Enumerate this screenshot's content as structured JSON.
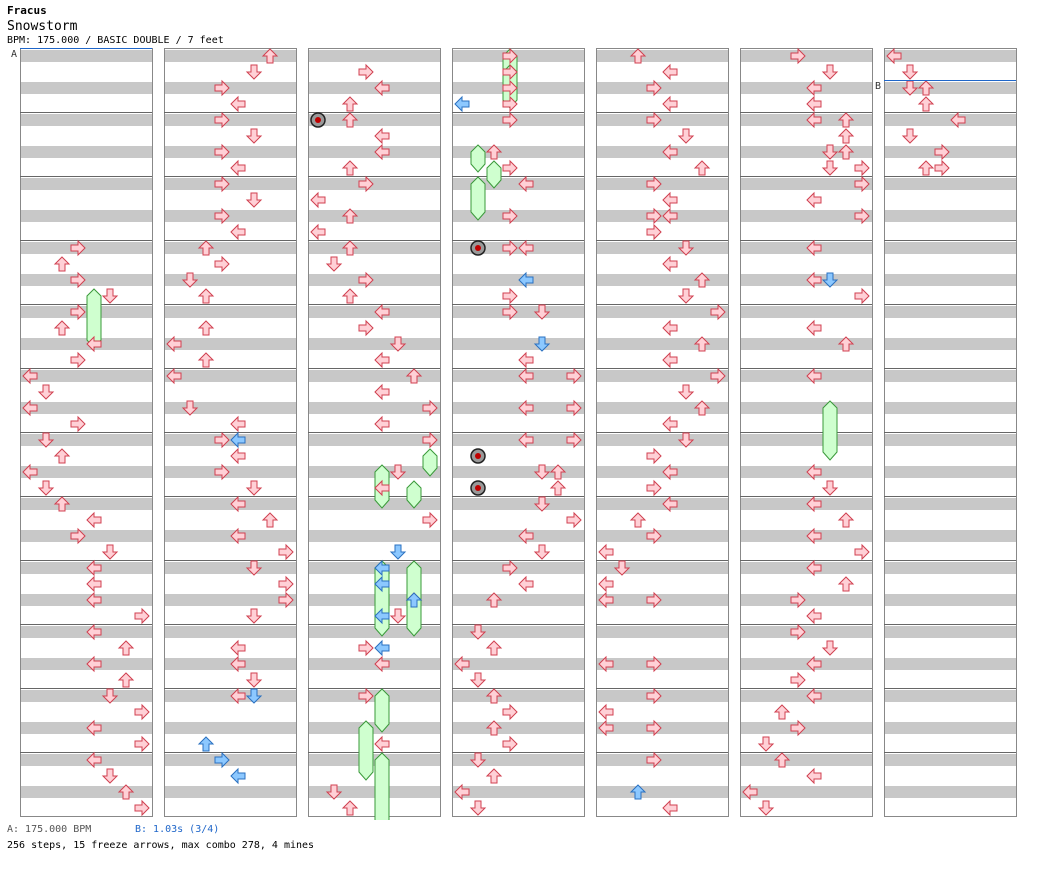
{
  "song": {
    "artist": "Fracus",
    "title": "Snowstorm",
    "meta": "BPM: 175.000 / BASIC DOUBLE / 7 feet"
  },
  "footer": {
    "bpm_a": "A: 175.000 BPM",
    "bpm_b": "B: 1.03s (3/4)",
    "stats": "256 steps, 15 freeze arrows, max combo 278, 4 mines"
  },
  "markers": [
    {
      "label": "A",
      "column": 0,
      "beat": 0,
      "color": "#1f66c9"
    },
    {
      "label": "B",
      "column": 6,
      "beat": 2,
      "color": "#1f66c9"
    }
  ],
  "colors": {
    "note": "#ffd0d6",
    "note_stroke": "#d04050",
    "blue_note": "#8cc8ff",
    "blue_stroke": "#2a70c0",
    "freeze": "#cfffcf",
    "freeze_stroke": "#3a9a3a",
    "stripe": "#c8c8c8",
    "mine": "#444444"
  },
  "chart_data": {
    "type": "step-chart",
    "lanes": 8,
    "columns": 7,
    "measures_per_column": 12,
    "beats_per_measure": 4,
    "notes": [
      [
        0,
        12,
        3
      ],
      [
        0,
        13,
        2
      ],
      [
        0,
        14,
        3
      ],
      [
        0,
        15,
        5
      ],
      [
        0,
        16,
        3
      ],
      [
        0,
        17,
        2
      ],
      [
        0,
        18,
        4
      ],
      [
        0,
        19,
        3
      ],
      [
        0,
        20,
        0
      ],
      [
        0,
        21,
        1
      ],
      [
        0,
        22,
        0
      ],
      [
        0,
        23,
        3
      ],
      [
        0,
        24,
        1
      ],
      [
        0,
        25,
        2
      ],
      [
        0,
        26,
        0
      ],
      [
        0,
        27,
        1
      ],
      [
        0,
        28,
        2
      ],
      [
        0,
        29,
        4
      ],
      [
        0,
        30,
        3
      ],
      [
        0,
        31,
        5
      ],
      [
        0,
        32,
        4
      ],
      [
        0,
        33,
        4
      ],
      [
        0,
        34,
        4
      ],
      [
        0,
        35,
        7
      ],
      [
        0,
        36,
        4
      ],
      [
        0,
        37,
        6
      ],
      [
        0,
        38,
        4
      ],
      [
        0,
        39,
        6
      ],
      [
        0,
        40,
        5
      ],
      [
        0,
        41,
        7
      ],
      [
        0,
        42,
        4
      ],
      [
        0,
        43,
        7
      ],
      [
        0,
        44,
        4
      ],
      [
        0,
        45,
        5
      ],
      [
        0,
        46,
        6
      ],
      [
        0,
        47,
        7
      ],
      [
        1,
        0,
        6
      ],
      [
        1,
        1,
        5
      ],
      [
        1,
        2,
        3
      ],
      [
        1,
        3,
        4
      ],
      [
        1,
        4,
        3
      ],
      [
        1,
        5,
        5
      ],
      [
        1,
        6,
        3
      ],
      [
        1,
        7,
        4
      ],
      [
        1,
        8,
        3
      ],
      [
        1,
        9,
        5
      ],
      [
        1,
        10,
        3
      ],
      [
        1,
        11,
        4
      ],
      [
        1,
        12,
        2
      ],
      [
        1,
        13,
        3
      ],
      [
        1,
        14,
        1
      ],
      [
        1,
        15,
        2
      ],
      [
        1,
        17,
        2
      ],
      [
        1,
        18,
        0
      ],
      [
        1,
        19,
        2
      ],
      [
        1,
        20,
        0
      ],
      [
        1,
        22,
        1
      ],
      [
        1,
        23,
        4
      ],
      [
        1,
        24,
        3
      ],
      [
        1,
        25,
        4
      ],
      [
        1,
        26,
        3
      ],
      [
        1,
        27,
        5
      ],
      [
        1,
        28,
        4
      ],
      [
        1,
        29,
        6
      ],
      [
        1,
        30,
        4
      ],
      [
        1,
        31,
        7
      ],
      [
        1,
        32,
        5
      ],
      [
        1,
        33,
        7
      ],
      [
        1,
        34,
        7
      ],
      [
        1,
        35,
        5
      ],
      [
        1,
        37,
        4
      ],
      [
        1,
        38,
        4
      ],
      [
        1,
        39,
        5
      ],
      [
        1,
        40,
        4
      ],
      [
        2,
        1,
        3
      ],
      [
        2,
        2,
        4
      ],
      [
        2,
        3,
        2
      ],
      [
        2,
        4,
        2
      ],
      [
        2,
        5,
        4
      ],
      [
        2,
        6,
        4
      ],
      [
        2,
        7,
        2
      ],
      [
        2,
        8,
        3
      ],
      [
        2,
        9,
        0
      ],
      [
        2,
        10,
        2
      ],
      [
        2,
        11,
        0
      ],
      [
        2,
        12,
        2
      ],
      [
        2,
        13,
        1
      ],
      [
        2,
        14,
        3
      ],
      [
        2,
        15,
        2
      ],
      [
        2,
        16,
        4
      ],
      [
        2,
        17,
        3
      ],
      [
        2,
        18,
        5
      ],
      [
        2,
        19,
        4
      ],
      [
        2,
        20,
        6
      ],
      [
        2,
        21,
        4
      ],
      [
        2,
        22,
        7
      ],
      [
        2,
        23,
        4
      ],
      [
        2,
        24,
        7
      ],
      [
        2,
        26,
        5
      ],
      [
        2,
        27,
        4
      ],
      [
        2,
        29,
        7
      ],
      [
        2,
        34,
        6
      ],
      [
        2,
        35,
        5
      ],
      [
        2,
        37,
        3
      ],
      [
        2,
        38,
        4
      ],
      [
        2,
        40,
        3
      ],
      [
        2,
        43,
        4
      ],
      [
        2,
        46,
        1
      ],
      [
        2,
        47,
        2
      ],
      [
        3,
        0,
        3
      ],
      [
        3,
        1,
        3
      ],
      [
        3,
        2,
        3
      ],
      [
        3,
        3,
        3
      ],
      [
        3,
        4,
        3
      ],
      [
        3,
        6,
        2
      ],
      [
        3,
        7,
        3
      ],
      [
        3,
        8,
        4
      ],
      [
        3,
        10,
        3
      ],
      [
        3,
        12,
        3
      ],
      [
        3,
        12,
        4
      ],
      [
        3,
        15,
        3
      ],
      [
        3,
        16,
        3
      ],
      [
        3,
        16,
        5
      ],
      [
        3,
        19,
        4
      ],
      [
        3,
        20,
        4
      ],
      [
        3,
        20,
        7
      ],
      [
        3,
        22,
        4
      ],
      [
        3,
        22,
        7
      ],
      [
        3,
        24,
        4
      ],
      [
        3,
        24,
        7
      ],
      [
        3,
        26,
        5
      ],
      [
        3,
        26,
        6
      ],
      [
        3,
        27,
        6
      ],
      [
        3,
        28,
        5
      ],
      [
        3,
        29,
        7
      ],
      [
        3,
        30,
        4
      ],
      [
        3,
        31,
        5
      ],
      [
        3,
        32,
        3
      ],
      [
        3,
        33,
        4
      ],
      [
        3,
        34,
        2
      ],
      [
        3,
        36,
        1
      ],
      [
        3,
        37,
        2
      ],
      [
        3,
        38,
        0
      ],
      [
        3,
        39,
        1
      ],
      [
        3,
        40,
        2
      ],
      [
        3,
        41,
        3
      ],
      [
        3,
        42,
        2
      ],
      [
        3,
        43,
        3
      ],
      [
        3,
        44,
        1
      ],
      [
        3,
        45,
        2
      ],
      [
        3,
        46,
        0
      ],
      [
        3,
        47,
        1
      ],
      [
        4,
        0,
        2
      ],
      [
        4,
        1,
        4
      ],
      [
        4,
        2,
        3
      ],
      [
        4,
        3,
        4
      ],
      [
        4,
        4,
        3
      ],
      [
        4,
        5,
        5
      ],
      [
        4,
        6,
        4
      ],
      [
        4,
        7,
        6
      ],
      [
        4,
        8,
        3
      ],
      [
        4,
        9,
        4
      ],
      [
        4,
        10,
        3
      ],
      [
        4,
        10,
        4
      ],
      [
        4,
        11,
        3
      ],
      [
        4,
        12,
        5
      ],
      [
        4,
        13,
        4
      ],
      [
        4,
        14,
        6
      ],
      [
        4,
        15,
        5
      ],
      [
        4,
        16,
        7
      ],
      [
        4,
        17,
        4
      ],
      [
        4,
        18,
        6
      ],
      [
        4,
        19,
        4
      ],
      [
        4,
        20,
        7
      ],
      [
        4,
        21,
        5
      ],
      [
        4,
        22,
        6
      ],
      [
        4,
        23,
        4
      ],
      [
        4,
        24,
        5
      ],
      [
        4,
        25,
        3
      ],
      [
        4,
        26,
        4
      ],
      [
        4,
        27,
        3
      ],
      [
        4,
        28,
        4
      ],
      [
        4,
        29,
        2
      ],
      [
        4,
        30,
        3
      ],
      [
        4,
        31,
        0
      ],
      [
        4,
        32,
        1
      ],
      [
        4,
        33,
        0
      ],
      [
        4,
        34,
        0
      ],
      [
        4,
        34,
        3
      ],
      [
        4,
        38,
        0
      ],
      [
        4,
        38,
        3
      ],
      [
        4,
        40,
        3
      ],
      [
        4,
        41,
        0
      ],
      [
        4,
        42,
        0
      ],
      [
        4,
        42,
        3
      ],
      [
        4,
        44,
        3
      ],
      [
        4,
        47,
        4
      ],
      [
        5,
        0,
        3
      ],
      [
        5,
        1,
        5
      ],
      [
        5,
        2,
        4
      ],
      [
        5,
        3,
        4
      ],
      [
        5,
        4,
        4
      ],
      [
        5,
        4,
        6
      ],
      [
        5,
        5,
        6
      ],
      [
        5,
        6,
        5
      ],
      [
        5,
        6,
        6
      ],
      [
        5,
        7,
        5
      ],
      [
        5,
        7,
        7
      ],
      [
        5,
        8,
        7
      ],
      [
        5,
        9,
        4
      ],
      [
        5,
        10,
        7
      ],
      [
        5,
        12,
        4
      ],
      [
        5,
        14,
        4
      ],
      [
        5,
        15,
        7
      ],
      [
        5,
        17,
        4
      ],
      [
        5,
        18,
        6
      ],
      [
        5,
        20,
        4
      ],
      [
        5,
        26,
        4
      ],
      [
        5,
        27,
        5
      ],
      [
        5,
        28,
        4
      ],
      [
        5,
        29,
        6
      ],
      [
        5,
        30,
        4
      ],
      [
        5,
        31,
        7
      ],
      [
        5,
        32,
        4
      ],
      [
        5,
        33,
        6
      ],
      [
        5,
        34,
        3
      ],
      [
        5,
        35,
        4
      ],
      [
        5,
        36,
        3
      ],
      [
        5,
        37,
        5
      ],
      [
        5,
        38,
        4
      ],
      [
        5,
        39,
        3
      ],
      [
        5,
        40,
        4
      ],
      [
        5,
        41,
        2
      ],
      [
        5,
        42,
        3
      ],
      [
        5,
        43,
        1
      ],
      [
        5,
        44,
        2
      ],
      [
        5,
        45,
        4
      ],
      [
        5,
        46,
        0
      ],
      [
        5,
        47,
        1
      ],
      [
        6,
        0,
        0
      ],
      [
        6,
        1,
        1
      ],
      [
        6,
        2,
        1
      ],
      [
        6,
        2,
        2
      ],
      [
        6,
        3,
        2
      ],
      [
        6,
        4,
        4
      ],
      [
        6,
        5,
        1
      ],
      [
        6,
        6,
        3
      ],
      [
        6,
        7,
        2
      ],
      [
        6,
        7,
        3
      ]
    ],
    "blue_notes": [
      [
        1,
        24,
        4
      ],
      [
        1,
        40,
        5
      ],
      [
        1,
        43,
        2
      ],
      [
        1,
        44,
        3
      ],
      [
        1,
        45,
        4
      ],
      [
        2,
        31,
        5
      ],
      [
        2,
        32,
        4
      ],
      [
        2,
        33,
        4
      ],
      [
        2,
        34,
        6
      ],
      [
        2,
        35,
        4
      ],
      [
        2,
        37,
        4
      ],
      [
        3,
        3,
        0
      ],
      [
        3,
        14,
        4
      ],
      [
        3,
        18,
        5
      ],
      [
        5,
        14,
        5
      ],
      [
        4,
        46,
        2
      ]
    ],
    "mines": [
      [
        2,
        4,
        0
      ],
      [
        3,
        12,
        1
      ],
      [
        3,
        25,
        1
      ],
      [
        3,
        27,
        1
      ]
    ],
    "freezes": [
      [
        0,
        0,
        4,
        15,
        18
      ],
      [
        2,
        0,
        4,
        26,
        28
      ],
      [
        2,
        0,
        6,
        27,
        28
      ],
      [
        2,
        0,
        4,
        32,
        36
      ],
      [
        2,
        0,
        6,
        32,
        36
      ],
      [
        2,
        0,
        4,
        40,
        42
      ],
      [
        2,
        0,
        3,
        42,
        45
      ],
      [
        2,
        0,
        4,
        44,
        48
      ],
      [
        3,
        0,
        3,
        0,
        2
      ],
      [
        3,
        0,
        3,
        1,
        3
      ],
      [
        3,
        0,
        1,
        6,
        7
      ],
      [
        3,
        0,
        2,
        7,
        8
      ],
      [
        3,
        0,
        1,
        8,
        10
      ],
      [
        2,
        0,
        7,
        25,
        26
      ],
      [
        5,
        0,
        5,
        22,
        25
      ]
    ]
  }
}
